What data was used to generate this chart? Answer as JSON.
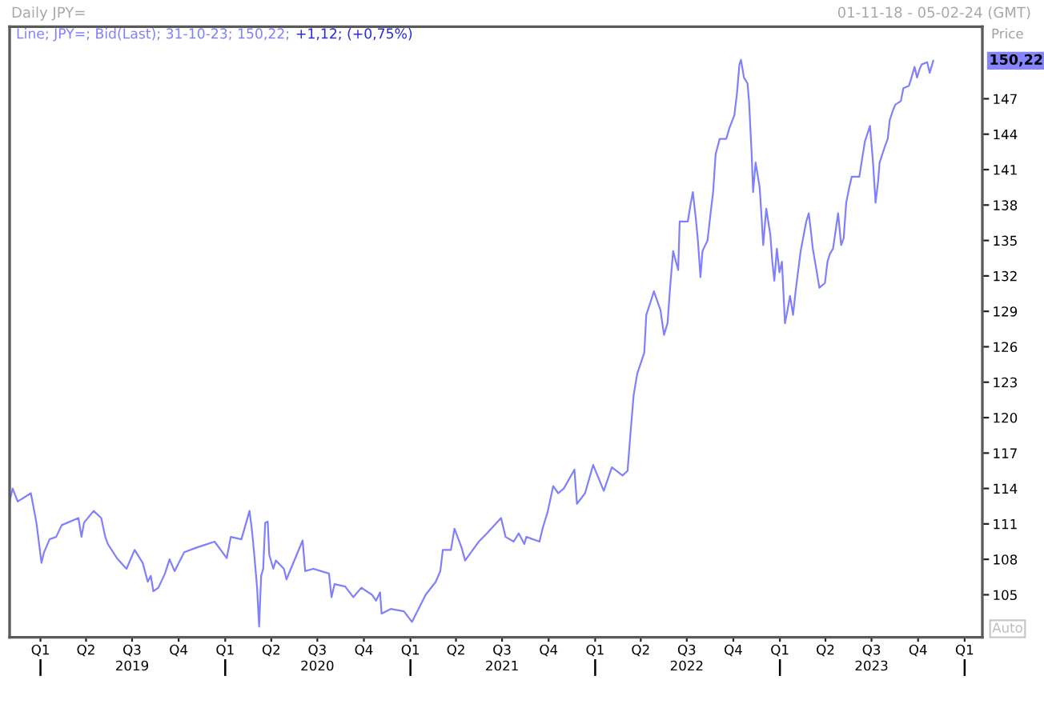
{
  "chart_data": {
    "type": "line",
    "title": "Daily JPY=",
    "subtitle": "01-11-18 - 05-02-24 (GMT)",
    "ylabel": "Price",
    "annotations": [
      "Line; JPY=; Bid(Last); 31-10-23; 150,22;",
      "+1,12; (+0,75%)",
      "150,22",
      "Auto"
    ],
    "x": [
      "2018-11-01",
      "2018-11-07",
      "2018-11-17",
      "2018-12-13",
      "2018-12-24",
      "2019-01-03",
      "2019-01-08",
      "2019-01-19",
      "2019-02-01",
      "2019-02-12",
      "2019-03-17",
      "2019-03-23",
      "2019-03-28",
      "2019-04-16",
      "2019-05-01",
      "2019-05-09",
      "2019-05-14",
      "2019-06-01",
      "2019-06-20",
      "2019-07-06",
      "2019-07-22",
      "2019-08-01",
      "2019-08-07",
      "2019-08-12",
      "2019-08-22",
      "2019-09-04",
      "2019-09-13",
      "2019-09-23",
      "2019-10-12",
      "2019-11-06",
      "2019-12-11",
      "2020-01-04",
      "2020-01-12",
      "2020-02-02",
      "2020-02-18",
      "2020-02-23",
      "2020-02-28",
      "2020-03-04",
      "2020-03-08",
      "2020-03-12",
      "2020-03-16",
      "2020-03-20",
      "2020-03-25",
      "2020-03-28",
      "2020-04-05",
      "2020-04-10",
      "2020-04-26",
      "2020-05-01",
      "2020-06-02",
      "2020-06-07",
      "2020-06-23",
      "2020-07-08",
      "2020-07-24",
      "2020-07-29",
      "2020-08-04",
      "2020-08-25",
      "2020-09-10",
      "2020-09-26",
      "2020-10-17",
      "2020-10-25",
      "2020-11-02",
      "2020-11-05",
      "2020-11-23",
      "2020-12-19",
      "2021-01-04",
      "2021-01-31",
      "2021-02-20",
      "2021-03-01",
      "2021-03-06",
      "2021-03-22",
      "2021-03-29",
      "2021-04-12",
      "2021-04-19",
      "2021-05-16",
      "2021-06-01",
      "2021-06-29",
      "2021-07-08",
      "2021-07-24",
      "2021-08-03",
      "2021-08-14",
      "2021-08-18",
      "2021-09-13",
      "2021-09-19",
      "2021-09-29",
      "2021-10-10",
      "2021-10-20",
      "2021-10-31",
      "2021-11-21",
      "2021-11-26",
      "2021-12-12",
      "2021-12-28",
      "2022-01-18",
      "2022-02-03",
      "2022-02-24",
      "2022-03-06",
      "2022-03-12",
      "2022-03-18",
      "2022-03-25",
      "2022-04-08",
      "2022-04-12",
      "2022-04-22",
      "2022-04-27",
      "2022-05-10",
      "2022-05-17",
      "2022-05-24",
      "2022-05-29",
      "2022-06-04",
      "2022-06-14",
      "2022-06-17",
      "2022-07-03",
      "2022-07-09",
      "2022-07-13",
      "2022-07-19",
      "2022-07-23",
      "2022-07-28",
      "2022-08-01",
      "2022-08-11",
      "2022-08-17",
      "2022-08-22",
      "2022-08-27",
      "2022-09-04",
      "2022-09-17",
      "2022-09-23",
      "2022-10-03",
      "2022-10-08",
      "2022-10-13",
      "2022-10-16",
      "2022-10-22",
      "2022-10-29",
      "2022-11-01",
      "2022-11-06",
      "2022-11-09",
      "2022-11-14",
      "2022-11-22",
      "2022-11-26",
      "2022-11-29",
      "2022-12-05",
      "2022-12-13",
      "2022-12-17",
      "2022-12-21",
      "2022-12-26",
      "2022-12-31",
      "2023-01-05",
      "2023-01-11",
      "2023-01-16",
      "2023-01-21",
      "2023-01-27",
      "2023-02-01",
      "2023-02-11",
      "2023-02-22",
      "2023-02-27",
      "2023-03-03",
      "2023-03-07",
      "2023-03-15",
      "2023-03-20",
      "2023-03-31",
      "2023-04-05",
      "2023-04-10",
      "2023-04-16",
      "2023-04-26",
      "2023-05-02",
      "2023-05-07",
      "2023-05-12",
      "2023-05-18",
      "2023-05-23",
      "2023-06-07",
      "2023-06-12",
      "2023-06-18",
      "2023-06-28",
      "2023-07-04",
      "2023-07-09",
      "2023-07-14",
      "2023-07-17",
      "2023-07-27",
      "2023-08-02",
      "2023-08-06",
      "2023-08-13",
      "2023-08-17",
      "2023-08-28",
      "2023-09-02",
      "2023-09-13",
      "2023-09-18",
      "2023-09-24",
      "2023-09-29",
      "2023-10-04",
      "2023-10-08",
      "2023-10-19",
      "2023-10-24",
      "2023-10-31"
    ],
    "series": [
      {
        "color": "#8080ff",
        "values": [
          112.9,
          114.0,
          112.9,
          113.6,
          111.1,
          107.7,
          108.6,
          109.7,
          109.9,
          110.9,
          111.5,
          109.9,
          111.1,
          112.1,
          111.5,
          109.9,
          109.3,
          108.1,
          107.2,
          108.8,
          107.7,
          106.1,
          106.6,
          105.3,
          105.6,
          106.8,
          108.0,
          107.0,
          108.6,
          109.0,
          109.5,
          108.1,
          109.9,
          109.7,
          112.1,
          110.4,
          108.1,
          105.6,
          102.3,
          106.6,
          107.2,
          111.1,
          111.2,
          108.4,
          107.2,
          107.9,
          107.2,
          106.3,
          109.6,
          107.0,
          107.2,
          107.0,
          106.8,
          104.8,
          105.9,
          105.7,
          104.8,
          105.6,
          105.0,
          104.5,
          105.2,
          103.4,
          103.8,
          103.6,
          102.7,
          105.0,
          106.1,
          107.0,
          108.8,
          108.8,
          110.6,
          109.0,
          107.9,
          109.5,
          110.2,
          111.5,
          109.9,
          109.5,
          110.2,
          109.3,
          109.9,
          109.5,
          110.6,
          112.0,
          114.2,
          113.6,
          114.0,
          115.6,
          112.7,
          113.6,
          116.0,
          113.8,
          115.8,
          115.1,
          115.5,
          118.8,
          121.9,
          123.7,
          125.5,
          128.7,
          130.0,
          130.7,
          129.1,
          127.0,
          128.0,
          131.0,
          134.1,
          132.5,
          136.6,
          136.6,
          138.2,
          139.1,
          136.8,
          135.0,
          131.9,
          134.1,
          135.0,
          137.3,
          139.1,
          142.3,
          143.6,
          143.6,
          144.5,
          145.6,
          147.4,
          149.9,
          150.3,
          148.8,
          148.3,
          146.8,
          142.5,
          139.1,
          141.6,
          139.5,
          136.8,
          134.6,
          137.7,
          135.5,
          133.2,
          131.6,
          134.3,
          132.3,
          133.2,
          128.0,
          129.1,
          130.3,
          128.7,
          130.7,
          134.1,
          136.6,
          137.3,
          135.9,
          134.3,
          132.3,
          131.0,
          131.4,
          133.2,
          133.9,
          134.3,
          137.3,
          134.6,
          135.2,
          138.2,
          139.5,
          140.4,
          140.4,
          141.8,
          143.4,
          144.7,
          141.6,
          138.2,
          140.0,
          141.6,
          142.9,
          143.6,
          145.2,
          146.1,
          146.5,
          146.8,
          147.9,
          148.1,
          148.8,
          149.7,
          148.8,
          149.5,
          149.9,
          150.1,
          149.2,
          150.22
        ]
      }
    ],
    "xlim": [
      "2018-11-01",
      "2024-02-05"
    ],
    "xticks": [
      {
        "value": "2019-01-01",
        "label": "Q1"
      },
      {
        "value": "2019-04-01",
        "label": "Q2"
      },
      {
        "value": "2019-07-01",
        "label": "Q3\n2019"
      },
      {
        "value": "2019-10-01",
        "label": "Q4"
      },
      {
        "value": "2020-01-01",
        "label": "Q1"
      },
      {
        "value": "2020-04-01",
        "label": "Q2"
      },
      {
        "value": "2020-07-01",
        "label": "Q3\n2020"
      },
      {
        "value": "2020-10-01",
        "label": "Q4"
      },
      {
        "value": "2021-01-01",
        "label": "Q1"
      },
      {
        "value": "2021-04-01",
        "label": "Q2"
      },
      {
        "value": "2021-07-01",
        "label": "Q3\n2021"
      },
      {
        "value": "2021-10-01",
        "label": "Q4"
      },
      {
        "value": "2022-01-01",
        "label": "Q1"
      },
      {
        "value": "2022-04-01",
        "label": "Q2"
      },
      {
        "value": "2022-07-01",
        "label": "Q3\n2022"
      },
      {
        "value": "2022-10-01",
        "label": "Q4"
      },
      {
        "value": "2023-01-01",
        "label": "Q1"
      },
      {
        "value": "2023-04-01",
        "label": "Q2"
      },
      {
        "value": "2023-07-01",
        "label": "Q3\n2023"
      },
      {
        "value": "2023-10-01",
        "label": "Q4"
      },
      {
        "value": "2024-01-01",
        "label": "Q1"
      }
    ],
    "ylim": [
      101.4,
      153.1
    ],
    "yticks": [
      105,
      108,
      111,
      114,
      117,
      120,
      123,
      126,
      129,
      132,
      135,
      138,
      141,
      144,
      147
    ]
  }
}
